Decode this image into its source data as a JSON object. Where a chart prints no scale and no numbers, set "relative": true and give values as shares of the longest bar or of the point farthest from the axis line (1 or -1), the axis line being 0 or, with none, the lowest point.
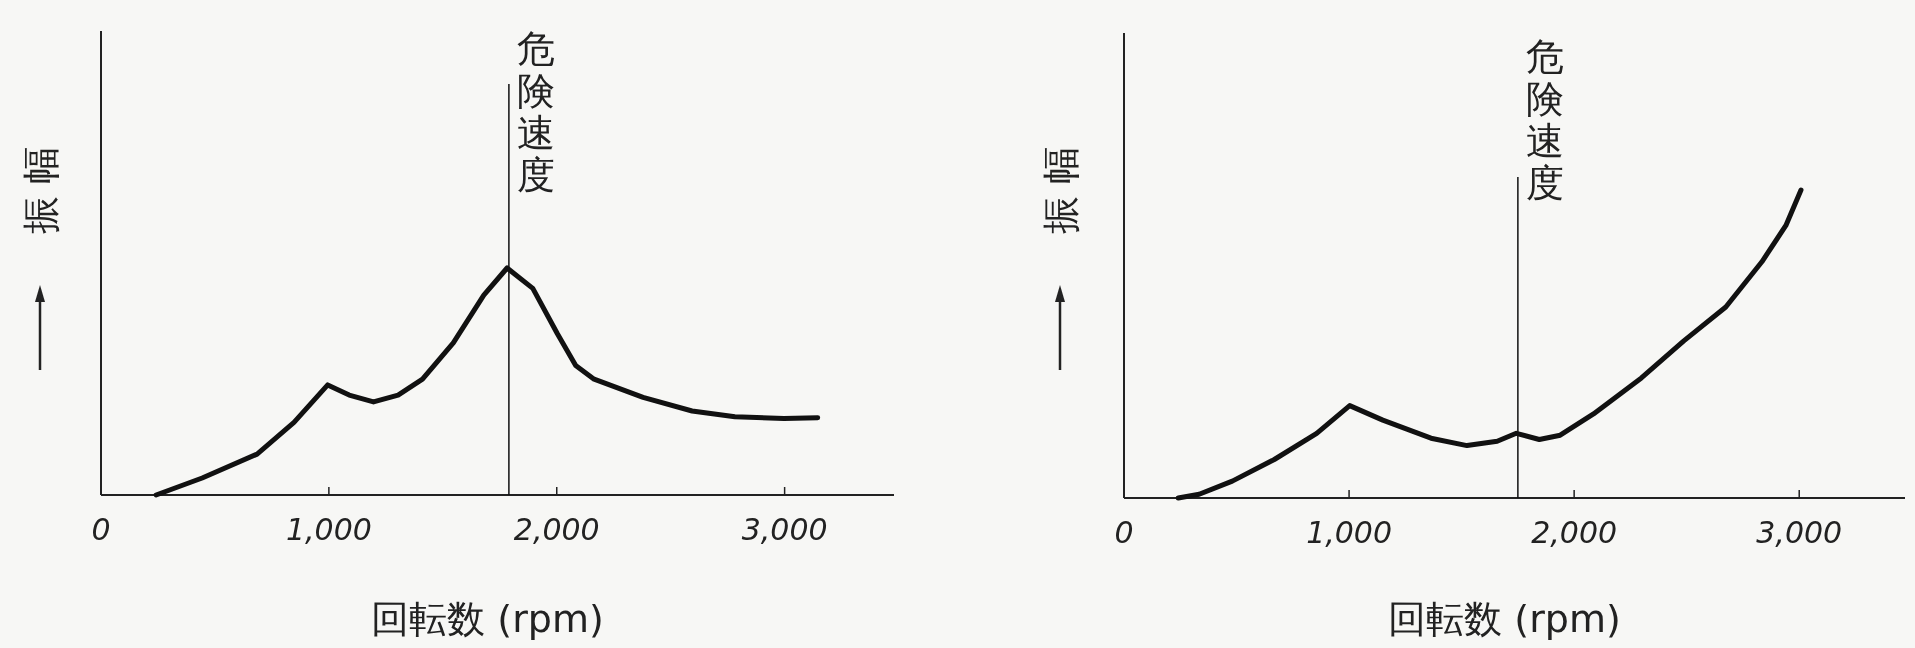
{
  "chart_data": [
    {
      "type": "line",
      "relative": true,
      "xlabel": "回転数 (rpm)",
      "ylabel": "振 幅",
      "xlim": [
        0,
        3480
      ],
      "xticks": [
        0,
        {
          "value": 1000,
          "label": "1,000"
        },
        {
          "value": 2000,
          "label": "2,000"
        },
        {
          "value": 3000,
          "label": "3,000"
        }
      ],
      "grid": false,
      "marker": "none",
      "line_style": "solid",
      "ref_lines": [
        {
          "axis": "x",
          "value": 1790,
          "label": "危険速度",
          "color": "#111111"
        }
      ],
      "series": [
        {
          "color": "#111111",
          "x": [
            242,
            444,
            685,
            847,
            995,
            1089,
            1196,
            1304,
            1411,
            1546,
            1680,
            1782,
            1895,
            2003,
            2083,
            2164,
            2379,
            2594,
            2782,
            2997,
            3145
          ],
          "values": [
            0,
            0.075,
            0.18,
            0.32,
            0.485,
            0.44,
            0.41,
            0.44,
            0.51,
            0.67,
            0.88,
            1.0,
            0.91,
            0.71,
            0.57,
            0.51,
            0.43,
            0.37,
            0.345,
            0.337,
            0.34
          ]
        }
      ]
    },
    {
      "type": "line",
      "relative": true,
      "xlabel": "回転数 (rpm)",
      "ylabel": "振 幅",
      "xlim": [
        0,
        3470
      ],
      "xticks": [
        0,
        {
          "value": 1000,
          "label": "1,000"
        },
        {
          "value": 2000,
          "label": "2,000"
        },
        {
          "value": 3000,
          "label": "3,000"
        }
      ],
      "grid": false,
      "marker": "none",
      "line_style": "solid",
      "ref_lines": [
        {
          "axis": "x",
          "value": 1750,
          "label": "危険速度",
          "color": "#111111"
        }
      ],
      "series": [
        {
          "color": "#111111",
          "x": [
            241,
            334,
            481,
            668,
            856,
            1003,
            1150,
            1364,
            1524,
            1658,
            1743,
            1845,
            1938,
            2086,
            2299,
            2487,
            2674,
            2834,
            2941,
            3008
          ],
          "values": [
            0,
            0.012,
            0.055,
            0.125,
            0.21,
            0.3,
            0.253,
            0.194,
            0.17,
            0.184,
            0.21,
            0.19,
            0.204,
            0.273,
            0.39,
            0.51,
            0.62,
            0.767,
            0.885,
            1.0
          ]
        }
      ]
    }
  ]
}
